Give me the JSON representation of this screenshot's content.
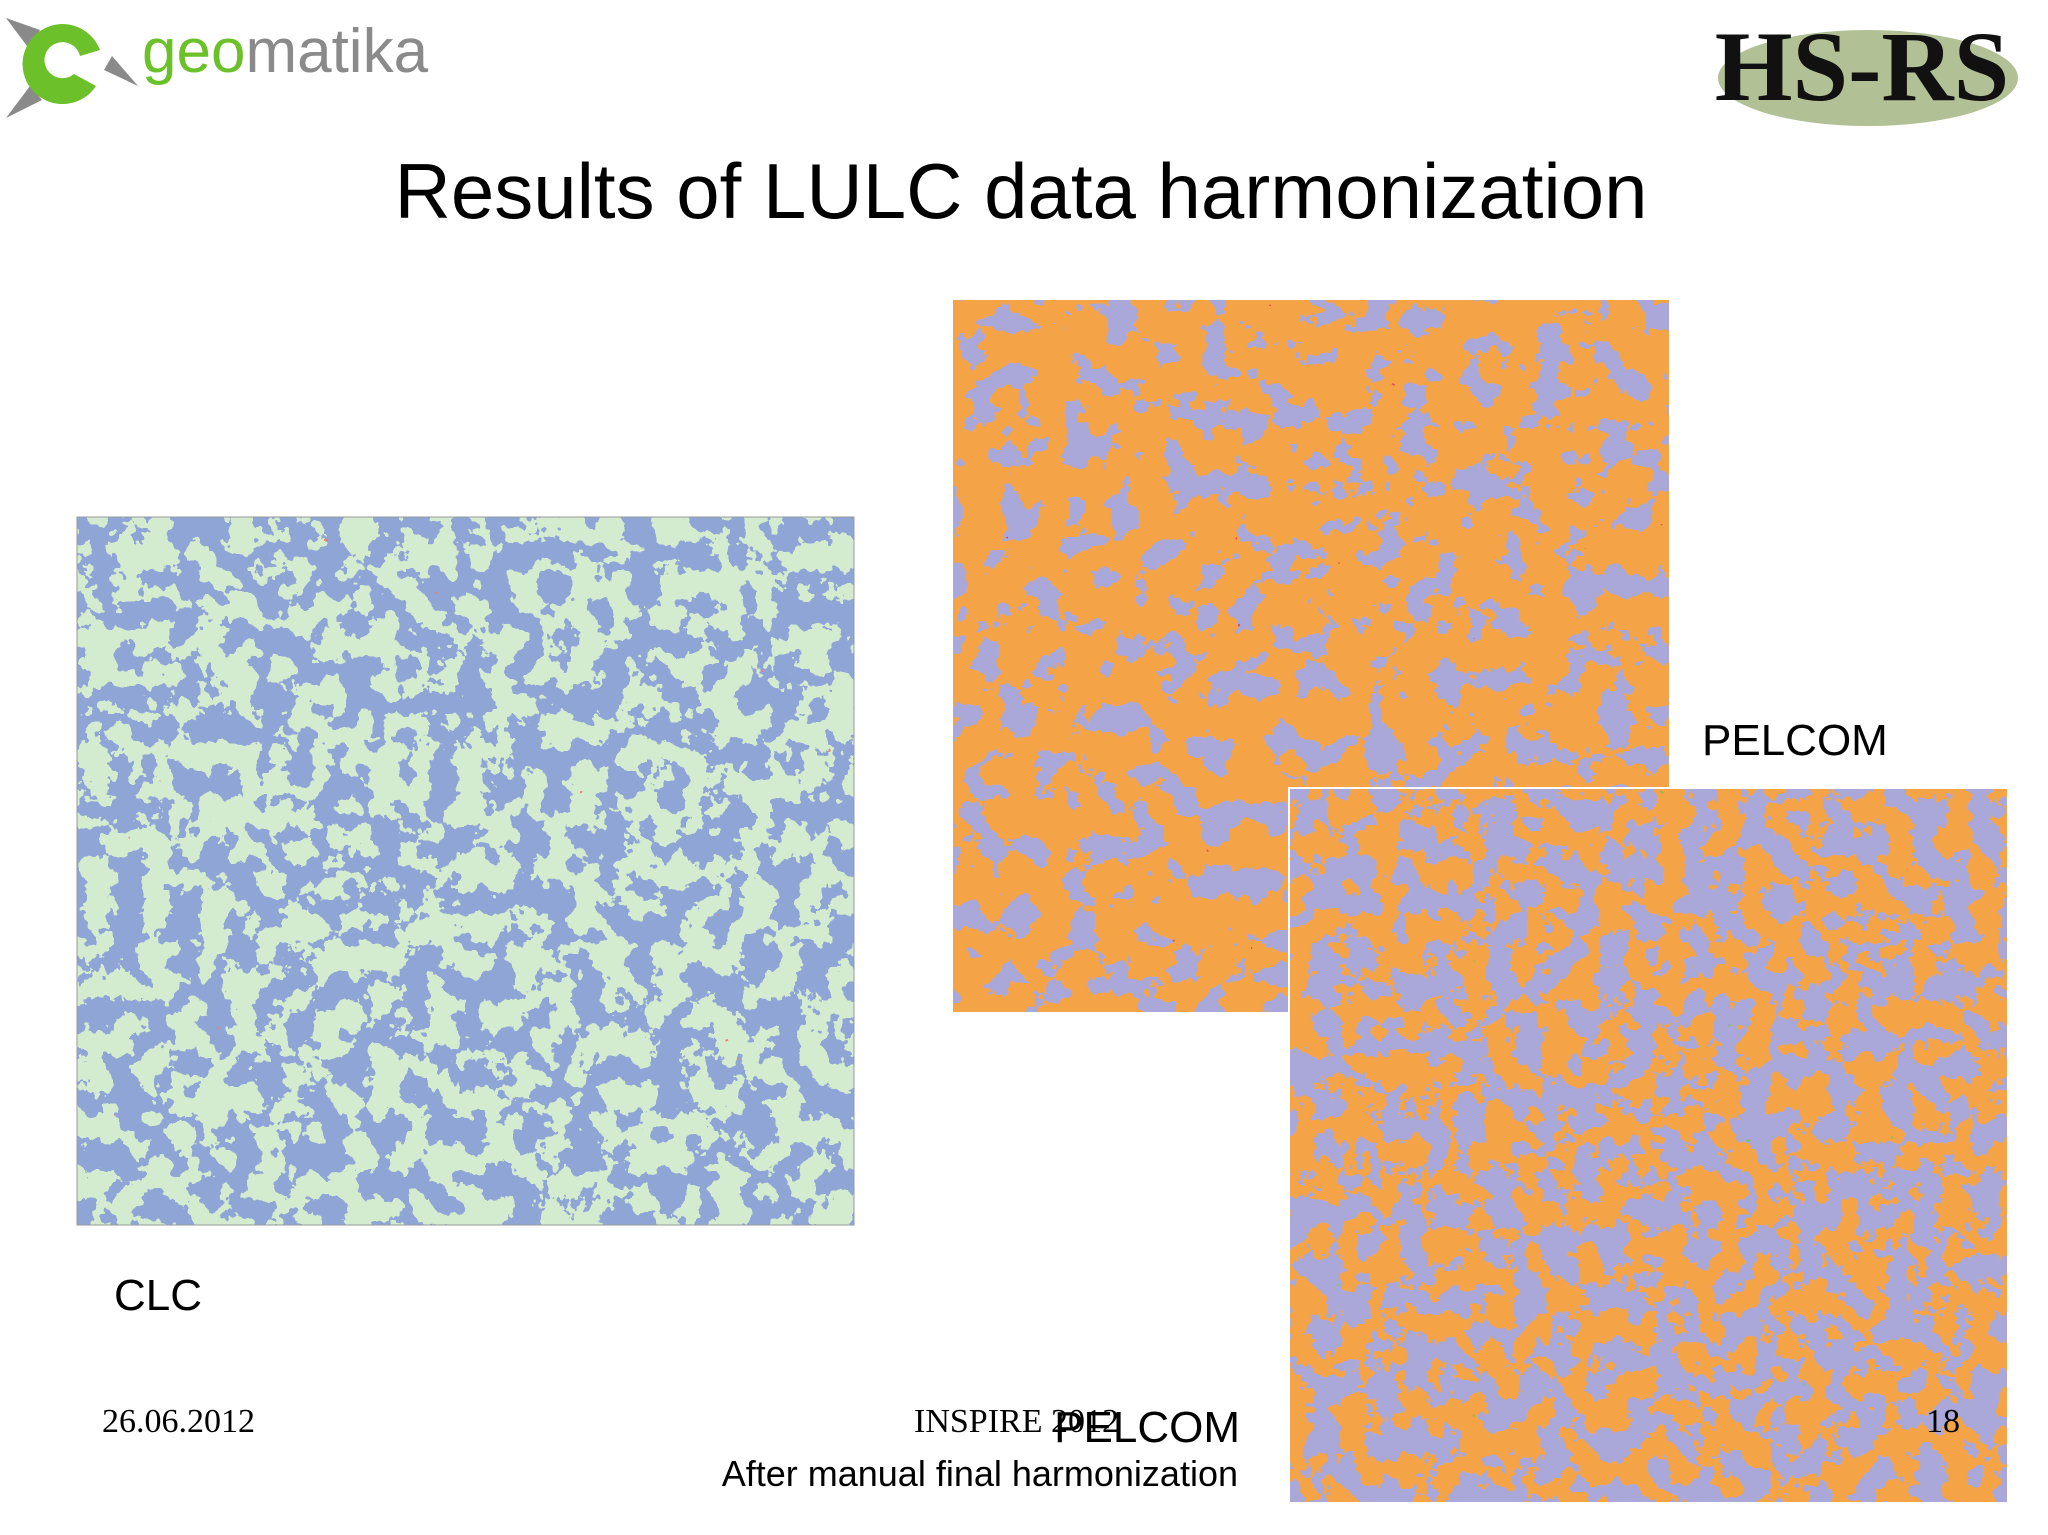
{
  "header": {
    "logo_left": [
      "geo",
      "matika"
    ],
    "logo_right": "HS-RS",
    "title": "Results of LULC data harmonization"
  },
  "maps": [
    {
      "label": "CLC"
    },
    {
      "label": "PELCOM"
    },
    {
      "label": "PELCOM",
      "caption": "After manual final harmonization"
    }
  ],
  "footer": {
    "date": "26.06.2012",
    "event": "INSPIRE 2012",
    "page": 18
  }
}
